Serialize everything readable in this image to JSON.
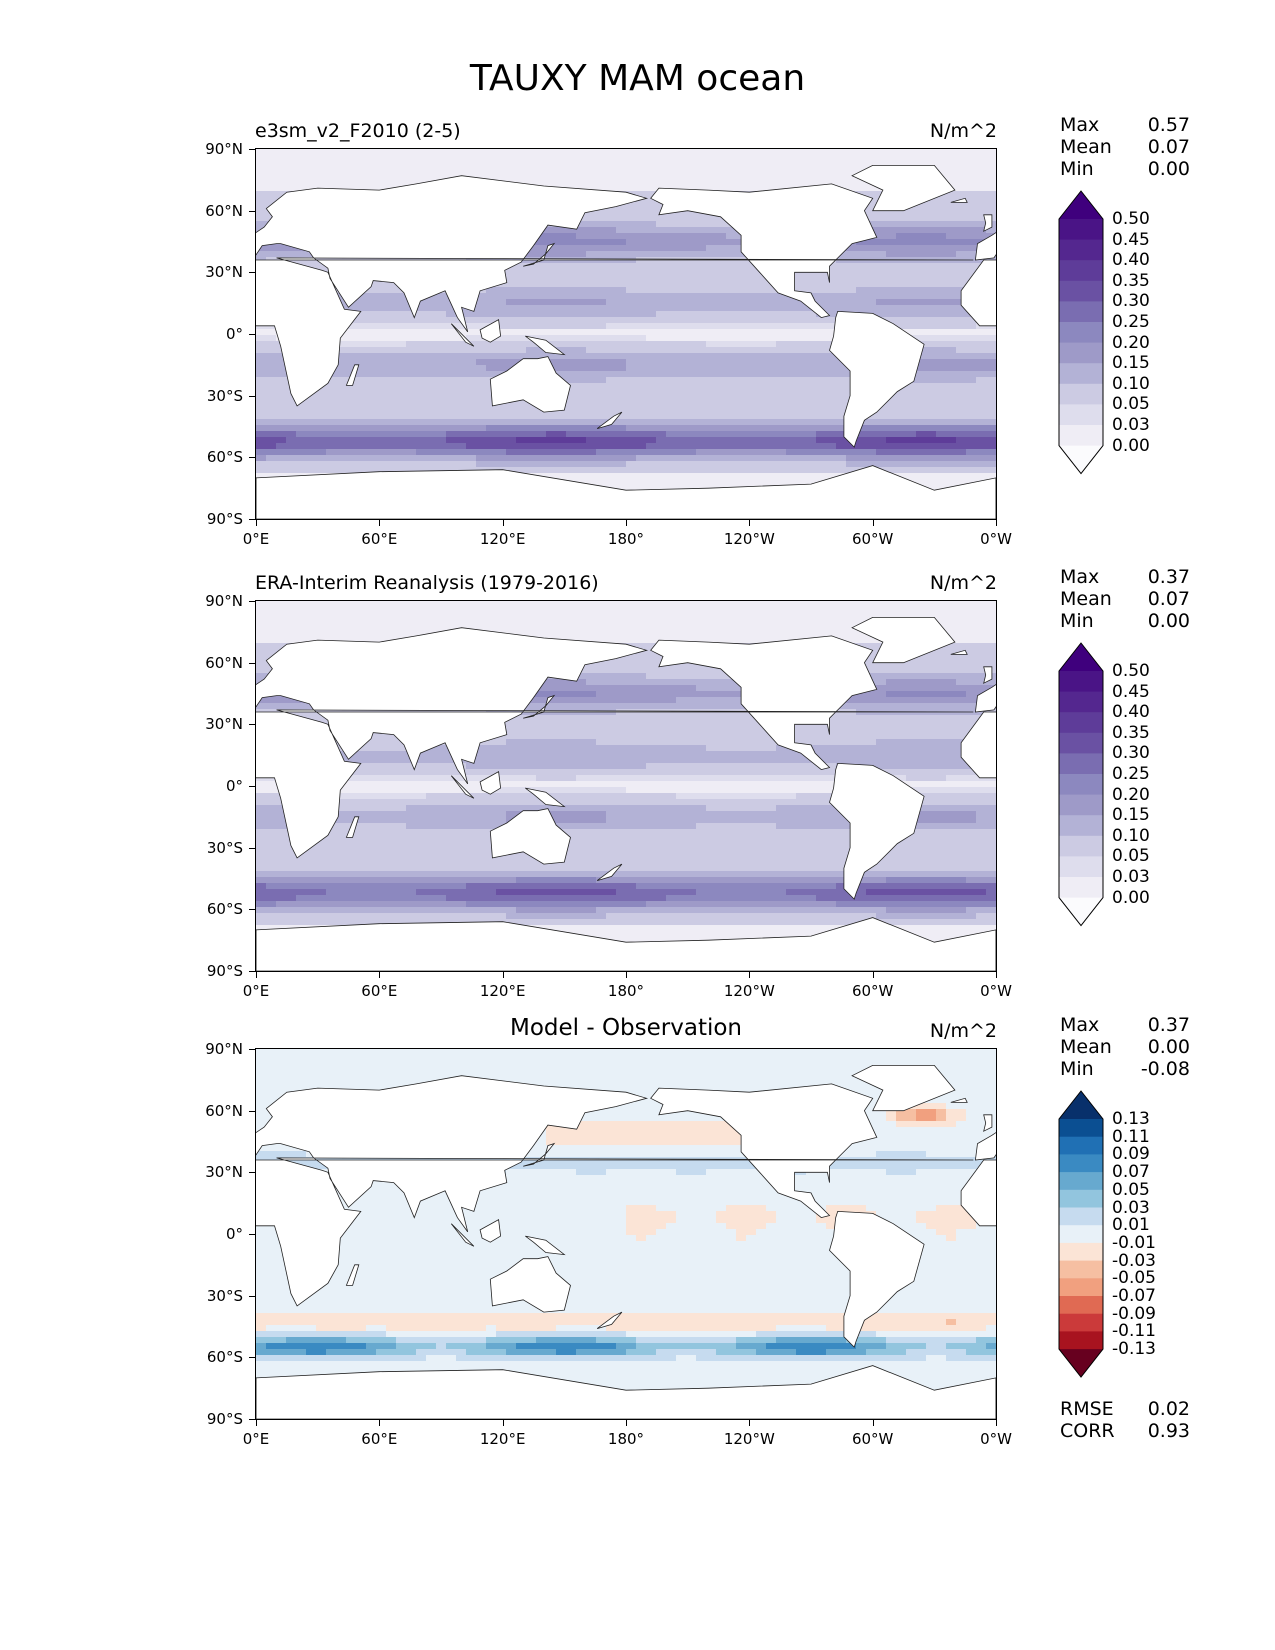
{
  "title": "TAUXY MAM ocean",
  "axes": {
    "lat_ticks": [
      "90°N",
      "60°N",
      "30°N",
      "0°",
      "30°S",
      "60°S",
      "90°S"
    ],
    "lon_ticks": [
      "0°E",
      "60°E",
      "120°E",
      "180°",
      "120°W",
      "60°W",
      "0°W"
    ]
  },
  "panels": [
    {
      "title": "e3sm_v2_F2010 (2-5)",
      "title_position": "left",
      "units": "N/m^2",
      "stats": [
        {
          "label": "Max",
          "value": "0.57"
        },
        {
          "label": "Mean",
          "value": "0.07"
        },
        {
          "label": "Min",
          "value": "0.00"
        }
      ],
      "colorbar": {
        "labels": [
          "0.50",
          "0.45",
          "0.40",
          "0.35",
          "0.30",
          "0.25",
          "0.20",
          "0.15",
          "0.10",
          "0.05",
          "0.03",
          "0.00"
        ],
        "colors_top_to_bottom": [
          "#3f007d",
          "#4a1486",
          "#54278f",
          "#5e3c99",
          "#6a51a3",
          "#7a6db1",
          "#8c88bf",
          "#9e9ac8",
          "#b3b2d6",
          "#cccbe3",
          "#dedded",
          "#efedf5",
          "#fbfbfd"
        ],
        "extend": "both"
      },
      "field": "model"
    },
    {
      "title": "ERA-Interim Reanalysis (1979-2016)",
      "title_position": "left",
      "units": "N/m^2",
      "stats": [
        {
          "label": "Max",
          "value": "0.37"
        },
        {
          "label": "Mean",
          "value": "0.07"
        },
        {
          "label": "Min",
          "value": "0.00"
        }
      ],
      "colorbar": {
        "labels": [
          "0.50",
          "0.45",
          "0.40",
          "0.35",
          "0.30",
          "0.25",
          "0.20",
          "0.15",
          "0.10",
          "0.05",
          "0.03",
          "0.00"
        ],
        "colors_top_to_bottom": [
          "#3f007d",
          "#4a1486",
          "#54278f",
          "#5e3c99",
          "#6a51a3",
          "#7a6db1",
          "#8c88bf",
          "#9e9ac8",
          "#b3b2d6",
          "#cccbe3",
          "#dedded",
          "#efedf5",
          "#fbfbfd"
        ],
        "extend": "both"
      },
      "field": "obs"
    },
    {
      "title": "Model - Observation",
      "title_position": "center",
      "units": "N/m^2",
      "stats": [
        {
          "label": "Max",
          "value": "0.37"
        },
        {
          "label": "Mean",
          "value": "0.00"
        },
        {
          "label": "Min",
          "value": "-0.08"
        }
      ],
      "extra_stats": [
        {
          "label": "RMSE",
          "value": "0.02"
        },
        {
          "label": "CORR",
          "value": "0.93"
        }
      ],
      "colorbar": {
        "labels": [
          "0.13",
          "0.11",
          "0.09",
          "0.07",
          "0.05",
          "0.03",
          "0.01",
          "-0.01",
          "-0.03",
          "-0.05",
          "-0.07",
          "-0.09",
          "-0.11",
          "-0.13"
        ],
        "colors_top_to_bottom": [
          "#08306b",
          "#0b4f92",
          "#2070b4",
          "#3a8ac2",
          "#67a9cf",
          "#92c5de",
          "#c6dbef",
          "#e8f1f8",
          "#fbe4d6",
          "#f6bfa2",
          "#f1a07f",
          "#e06a53",
          "#cb3a3a",
          "#a8131f",
          "#67001f"
        ],
        "extend": "both"
      },
      "field": "diff"
    }
  ],
  "chart_data": {
    "type": "heatmap",
    "title": "TAUXY MAM ocean",
    "xlabel": "",
    "ylabel": "",
    "xlim": [
      0,
      360
    ],
    "ylim": [
      -90,
      90
    ],
    "panels": [
      {
        "name": "e3sm_v2_F2010 (2-5)",
        "max": 0.57,
        "mean": 0.07,
        "min": 0.0,
        "levels": [
          0.0,
          0.03,
          0.05,
          0.1,
          0.15,
          0.2,
          0.25,
          0.3,
          0.35,
          0.4,
          0.45,
          0.5
        ]
      },
      {
        "name": "ERA-Interim Reanalysis (1979-2016)",
        "max": 0.37,
        "mean": 0.07,
        "min": 0.0,
        "levels": [
          0.0,
          0.03,
          0.05,
          0.1,
          0.15,
          0.2,
          0.25,
          0.3,
          0.35,
          0.4,
          0.45,
          0.5
        ]
      },
      {
        "name": "Model - Observation",
        "max": 0.37,
        "mean": 0.0,
        "min": -0.08,
        "rmse": 0.02,
        "corr": 0.93,
        "levels": [
          -0.13,
          -0.11,
          -0.09,
          -0.07,
          -0.05,
          -0.03,
          -0.01,
          0.01,
          0.03,
          0.05,
          0.07,
          0.09,
          0.11,
          0.13
        ]
      }
    ]
  }
}
